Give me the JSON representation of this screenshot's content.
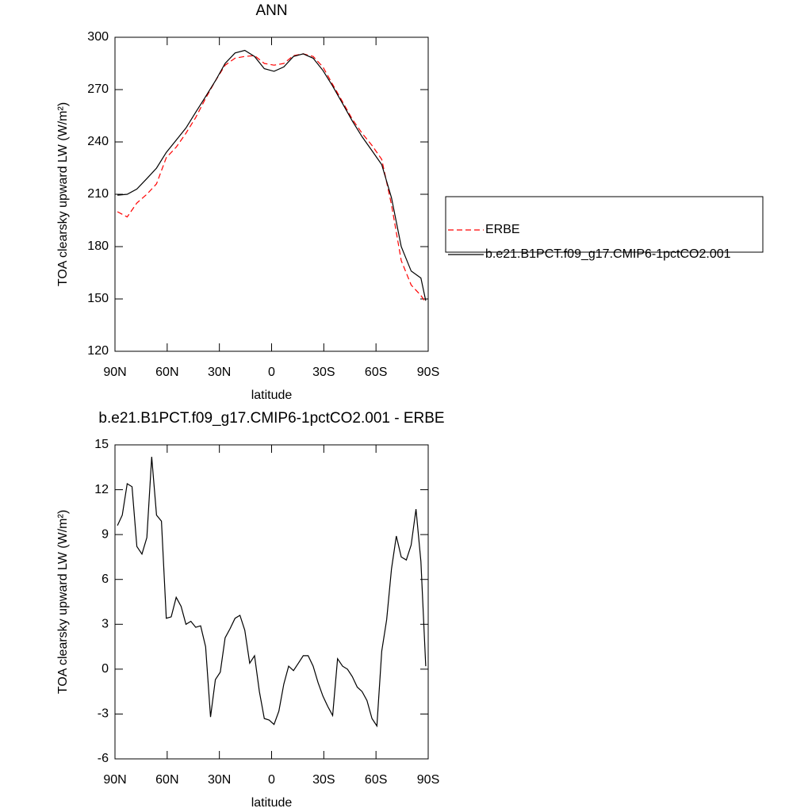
{
  "chart_data": [
    {
      "type": "line",
      "title": "ANN",
      "xlabel": "latitude",
      "ylabel": "TOA clearsky upward LW (W/m²)",
      "x": [
        88.6,
        83.0,
        77.4,
        71.7,
        66.1,
        60.5,
        54.8,
        49.2,
        43.6,
        37.9,
        32.3,
        26.7,
        21.0,
        15.4,
        9.8,
        4.2,
        -1.4,
        -7.0,
        -12.6,
        -18.2,
        -23.9,
        -29.5,
        -35.1,
        -40.8,
        -46.4,
        -52.0,
        -57.7,
        -63.3,
        -68.9,
        -74.5,
        -80.2,
        -85.8,
        -88.6
      ],
      "series": [
        {
          "name": "ERBE",
          "color": "#ff0000",
          "linestyle": "dashed",
          "values": [
            200,
            197,
            205,
            210,
            216,
            231,
            237,
            245,
            254,
            265,
            275,
            284,
            288,
            289,
            289.5,
            285,
            284,
            285,
            289.5,
            290.5,
            289,
            283,
            273,
            263,
            253,
            245,
            238,
            230,
            204,
            172,
            158,
            152,
            148
          ]
        },
        {
          "name": "b.e21.B1PCT.f09_g17.CMIP6-1pctCO2.001",
          "color": "#000000",
          "linestyle": "solid",
          "values": [
            209.5,
            210,
            213,
            219,
            225,
            234,
            241,
            248,
            257,
            266,
            275,
            285,
            291,
            292.5,
            289,
            282,
            280.5,
            283,
            289,
            290.5,
            288,
            281,
            272,
            262,
            252,
            243,
            235,
            227,
            208,
            180,
            166,
            162,
            149
          ]
        }
      ],
      "xlim": [
        90,
        -90
      ],
      "xticks": [
        {
          "value": 90,
          "label": "90N"
        },
        {
          "value": 60,
          "label": "60N"
        },
        {
          "value": 30,
          "label": "30N"
        },
        0,
        {
          "value": -30,
          "label": "30S"
        },
        {
          "value": -60,
          "label": "60S"
        },
        {
          "value": -90,
          "label": "90S"
        }
      ],
      "ylim": [
        120,
        300
      ],
      "yticks": [
        120,
        150,
        180,
        210,
        240,
        270,
        300
      ],
      "legend": "right"
    },
    {
      "type": "line",
      "title": "b.e21.B1PCT.f09_g17.CMIP6-1pctCO2.001 - ERBE",
      "xlabel": "latitude",
      "ylabel": "TOA clearsky upward LW (W/m²)",
      "x": [
        88.6,
        85.8,
        83.0,
        80.2,
        77.4,
        74.5,
        71.7,
        68.9,
        66.1,
        63.3,
        60.5,
        57.7,
        54.8,
        52.0,
        49.2,
        46.4,
        43.6,
        40.8,
        37.9,
        35.1,
        32.3,
        29.5,
        26.7,
        23.9,
        21.0,
        18.2,
        15.4,
        12.6,
        9.8,
        7.0,
        4.2,
        1.4,
        -1.4,
        -4.2,
        -7.0,
        -9.8,
        -12.6,
        -15.4,
        -18.2,
        -21.0,
        -23.9,
        -26.7,
        -29.5,
        -32.3,
        -35.1,
        -37.9,
        -40.8,
        -43.6,
        -46.4,
        -49.2,
        -52.0,
        -54.8,
        -57.7,
        -60.5,
        -63.3,
        -66.1,
        -68.9,
        -71.7,
        -74.5,
        -77.4,
        -80.2,
        -83.0,
        -85.8,
        -88.6
      ],
      "color": "#000000",
      "values": [
        9.6,
        10.3,
        12.4,
        12.2,
        8.2,
        7.7,
        8.8,
        14.2,
        10.3,
        9.9,
        3.4,
        3.5,
        4.8,
        4.2,
        3.0,
        3.2,
        2.8,
        2.9,
        1.5,
        -3.2,
        -0.7,
        -0.2,
        2.1,
        2.7,
        3.4,
        3.6,
        2.6,
        0.4,
        0.9,
        -1.5,
        -3.3,
        -3.4,
        -3.7,
        -2.8,
        -1.0,
        0.2,
        -0.1,
        0.4,
        0.9,
        0.9,
        0.2,
        -0.9,
        -1.8,
        -2.5,
        -3.1,
        0.7,
        0.2,
        0,
        -0.5,
        -1.2,
        -1.5,
        -2.1,
        -3.3,
        -3.8,
        1.2,
        3.3,
        6.7,
        8.9,
        7.5,
        7.3,
        8.3,
        10.7,
        7.2,
        0.2
      ],
      "xlim": [
        90,
        -90
      ],
      "xticks": [
        {
          "value": 90,
          "label": "90N"
        },
        {
          "value": 60,
          "label": "60N"
        },
        {
          "value": 30,
          "label": "30N"
        },
        0,
        {
          "value": -30,
          "label": "30S"
        },
        {
          "value": -60,
          "label": "60S"
        },
        {
          "value": -90,
          "label": "90S"
        }
      ],
      "ylim": [
        -6,
        15
      ],
      "yticks": [
        -6,
        -3,
        0,
        3,
        6,
        9,
        12,
        15
      ]
    }
  ]
}
